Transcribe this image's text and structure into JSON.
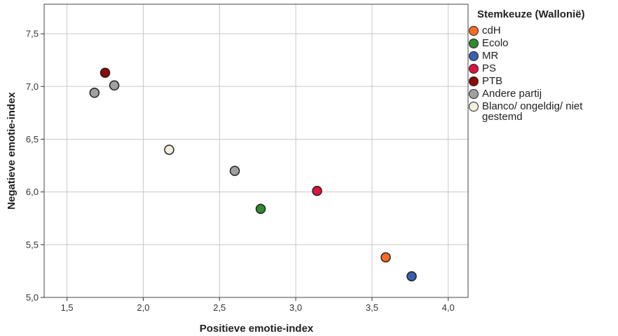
{
  "chart_data": {
    "type": "scatter",
    "xlabel": "Positieve emotie-index",
    "ylabel": "Negatieve emotie-index",
    "xlim": [
      1.35,
      4.13
    ],
    "ylim": [
      5.0,
      7.78
    ],
    "xticks": [
      "1,5",
      "2,0",
      "2,5",
      "3,0",
      "3,5",
      "4,0"
    ],
    "xtick_values": [
      1.5,
      2.0,
      2.5,
      3.0,
      3.5,
      4.0
    ],
    "yticks": [
      "5,0",
      "5,5",
      "6,0",
      "6,5",
      "7,0",
      "7,5"
    ],
    "ytick_values": [
      5.0,
      5.5,
      6.0,
      6.5,
      7.0,
      7.5
    ],
    "grid": true,
    "legend_position": "right",
    "legend_title": "Stemkeuze (Wallonië)",
    "series": [
      {
        "name": "cdH",
        "color": "#f46d25",
        "points": [
          {
            "x": 3.59,
            "y": 5.38
          }
        ]
      },
      {
        "name": "Ecolo",
        "color": "#2e8b2e",
        "points": [
          {
            "x": 2.77,
            "y": 5.84
          }
        ]
      },
      {
        "name": "MR",
        "color": "#3a5fad",
        "points": [
          {
            "x": 3.76,
            "y": 5.2
          }
        ]
      },
      {
        "name": "PS",
        "color": "#d9153f",
        "points": [
          {
            "x": 3.14,
            "y": 6.01
          }
        ]
      },
      {
        "name": "PTB",
        "color": "#8b0a0a",
        "points": [
          {
            "x": 1.75,
            "y": 7.13
          }
        ]
      },
      {
        "name": "Andere partij",
        "color": "#a0a0a0",
        "points": [
          {
            "x": 1.68,
            "y": 6.94
          },
          {
            "x": 1.81,
            "y": 7.01
          },
          {
            "x": 2.6,
            "y": 6.2
          }
        ]
      },
      {
        "name": "Blanco/ ongeldig/ niet gestemd",
        "color": "#f2eedf",
        "points": [
          {
            "x": 2.17,
            "y": 6.4
          }
        ]
      }
    ]
  }
}
